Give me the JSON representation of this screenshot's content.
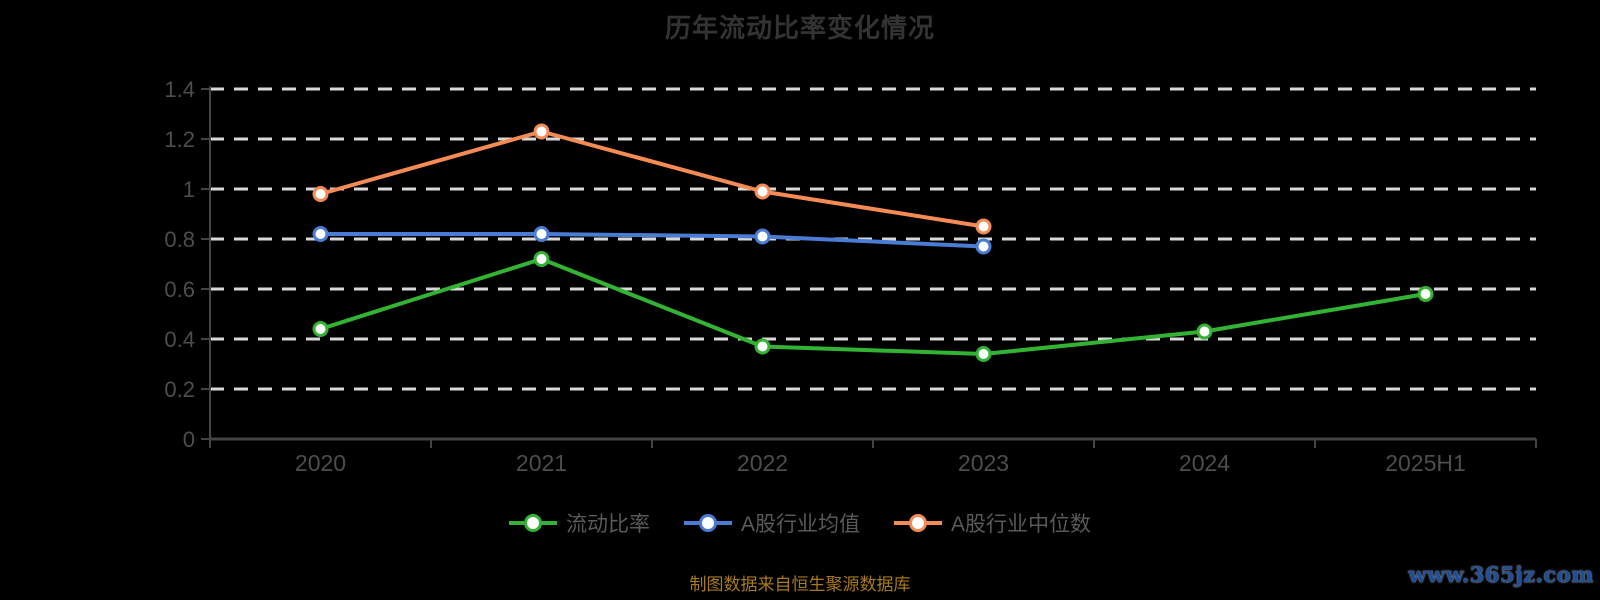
{
  "title": "历年流动比率变化情况",
  "footer": {
    "source_note": "制图数据来自恒生聚源数据库"
  },
  "watermark": "www.365jz.com",
  "colors": {
    "background": "#000000",
    "title_text": "#333333",
    "axis_line": "#444444",
    "axis_label": "#4d4d4d",
    "gridline": "#d8d8d8",
    "legend_text": "#595959",
    "footer_text": "#a8791e",
    "watermark_text": "#1d4e9e",
    "marker_fill": "#ffffff"
  },
  "chart_data": {
    "type": "line",
    "title": "历年流动比率变化情况",
    "categories": [
      "2020",
      "2021",
      "2022",
      "2023",
      "2024",
      "2025H1"
    ],
    "series": [
      {
        "name": "流动比率",
        "color": "#33b333",
        "values": [
          0.44,
          0.72,
          0.37,
          0.34,
          0.43,
          0.58
        ]
      },
      {
        "name": "A股行业均值",
        "color": "#4a7bd5",
        "values": [
          0.82,
          0.82,
          0.81,
          0.77,
          null,
          null
        ]
      },
      {
        "name": "A股行业中位数",
        "color": "#f58b54",
        "values": [
          0.98,
          1.23,
          0.99,
          0.85,
          null,
          null
        ]
      }
    ],
    "xlabel": "",
    "ylabel": "",
    "ylim": [
      0,
      1.4
    ],
    "ytick_interval": 0.2,
    "ytick_labels": [
      "0",
      "0.2",
      "0.4",
      "0.6",
      "0.8",
      "1",
      "1.2",
      "1.4"
    ],
    "grid": "horizontal-dashed-white",
    "legend_position": "bottom"
  }
}
